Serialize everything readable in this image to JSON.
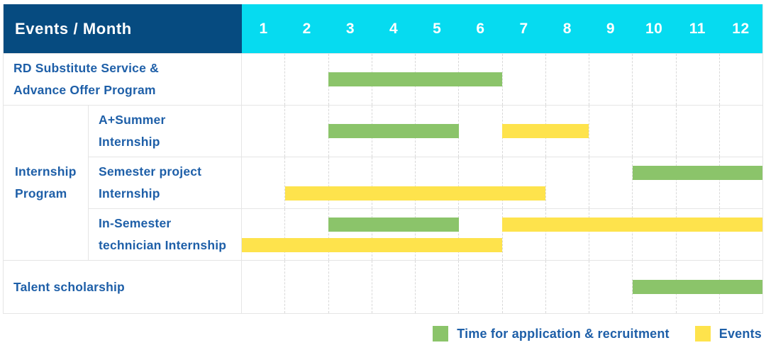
{
  "header": {
    "title": "Events / Month"
  },
  "colors": {
    "navy_header": "#064b80",
    "cyan_header": "#06dbf0",
    "label_blue": "#1e5fa8",
    "grid_line": "#e5e5e5"
  },
  "chart_data": {
    "type": "gantt",
    "title": "Events / Month",
    "months": [
      "1",
      "2",
      "3",
      "4",
      "5",
      "6",
      "7",
      "8",
      "9",
      "10",
      "11",
      "12"
    ],
    "x_range": [
      1,
      12
    ],
    "bar_colors": {
      "application": "#8bc46a",
      "events": "#fee34c"
    },
    "legend": [
      {
        "key": "application",
        "label": "Time for application & recruitment",
        "color": "#8bc46a"
      },
      {
        "key": "events",
        "label": "Events",
        "color": "#fee34c"
      }
    ],
    "rows": [
      {
        "group": "",
        "label": "RD Substitute Service & Advance Offer Program",
        "label_lines": [
          "RD Substitute Service &",
          "Advance Offer Program"
        ],
        "tracks": [
          [
            {
              "type": "application",
              "start_month": 3,
              "end_month": 6
            }
          ]
        ]
      },
      {
        "group": "Internship Program",
        "group_lines": [
          "Internship",
          "Program"
        ],
        "label": "A+Summer Internship",
        "label_lines": [
          "A+Summer",
          "Internship"
        ],
        "tracks": [
          [
            {
              "type": "application",
              "start_month": 3,
              "end_month": 5
            },
            {
              "type": "events",
              "start_month": 7,
              "end_month": 8
            }
          ]
        ]
      },
      {
        "group": "Internship Program",
        "label": "Semester project Internship",
        "label_lines": [
          "Semester project",
          "Internship"
        ],
        "tracks": [
          [
            {
              "type": "application",
              "start_month": 10,
              "end_month": 12
            }
          ],
          [
            {
              "type": "events",
              "start_month": 2,
              "end_month": 7
            }
          ]
        ]
      },
      {
        "group": "Internship Program",
        "label": "In-Semester technician Internship",
        "label_lines": [
          "In-Semester",
          "technician Internship"
        ],
        "tracks": [
          [
            {
              "type": "application",
              "start_month": 3,
              "end_month": 5
            },
            {
              "type": "events",
              "start_month": 7,
              "end_month": 12
            }
          ],
          [
            {
              "type": "events",
              "start_month": 1,
              "end_month": 6
            }
          ]
        ]
      },
      {
        "group": "",
        "label": "Talent scholarship",
        "label_lines": [
          "Talent scholarship"
        ],
        "tracks": [
          [
            {
              "type": "application",
              "start_month": 10,
              "end_month": 12
            }
          ]
        ]
      }
    ]
  }
}
